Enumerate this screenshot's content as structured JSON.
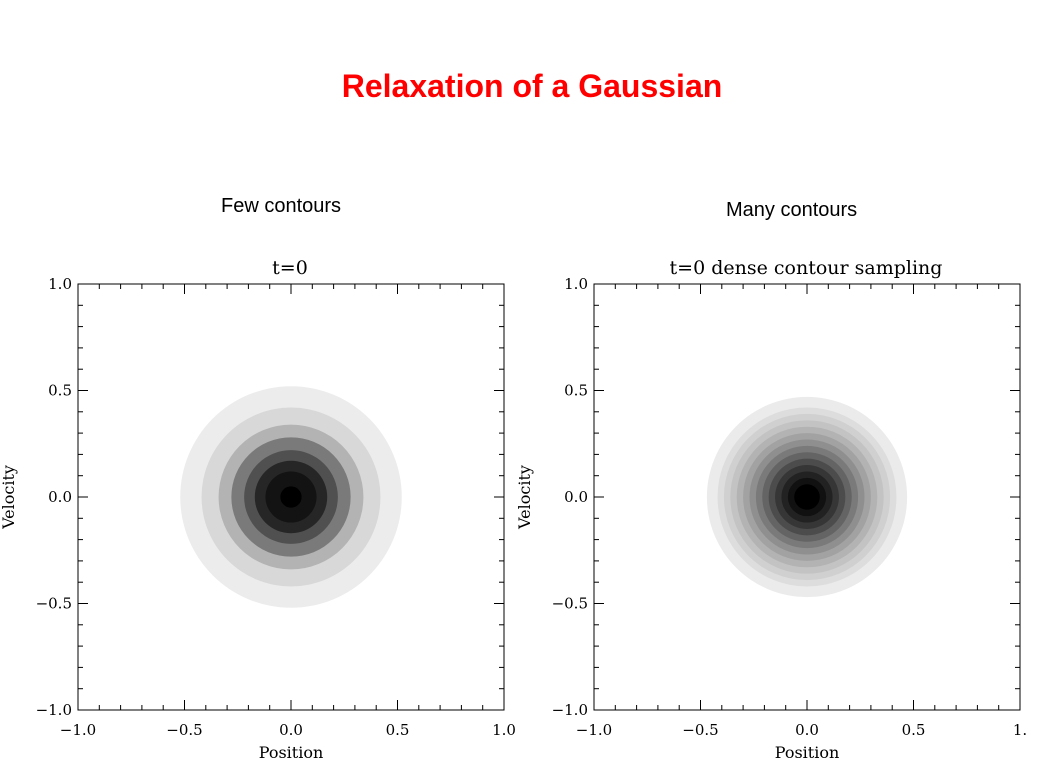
{
  "slide": {
    "title": "Relaxation of a Gaussian",
    "title_color": "#ff0000"
  },
  "captions": {
    "left": "Few contours",
    "right": "Many contours"
  },
  "chart_data": [
    {
      "type": "contour",
      "title": "t=0",
      "xlabel": "Position",
      "ylabel": "Velocity",
      "xlim": [
        -1.0,
        1.0
      ],
      "ylim": [
        -1.0,
        1.0
      ],
      "xticks": [
        "−1.0",
        "−0.5",
        "0.0",
        "0.5",
        "1.0"
      ],
      "yticks": [
        "−1.0",
        "−0.5",
        "0.0",
        "0.5",
        "1.0"
      ],
      "center": [
        0.0,
        0.0
      ],
      "grid": false,
      "fill": "grayscale filled contours",
      "levels": [
        {
          "radius": 0.52,
          "color": "#ececec"
        },
        {
          "radius": 0.42,
          "color": "#d8d8d8"
        },
        {
          "radius": 0.34,
          "color": "#b3b3b3"
        },
        {
          "radius": 0.28,
          "color": "#7a7a7a"
        },
        {
          "radius": 0.22,
          "color": "#505050"
        },
        {
          "radius": 0.17,
          "color": "#262626"
        },
        {
          "radius": 0.12,
          "color": "#131313"
        },
        {
          "radius": 0.05,
          "color": "#000000"
        }
      ]
    },
    {
      "type": "contour",
      "title": "t=0 dense contour sampling",
      "xlabel": "Position",
      "ylabel": "Velocity",
      "xlim": [
        -1.0,
        1.0
      ],
      "ylim": [
        -1.0,
        1.0
      ],
      "xticks": [
        "−1.0",
        "−0.5",
        "0.0",
        "0.5",
        "1."
      ],
      "yticks": [
        "−1.0",
        "−0.5",
        "0.0",
        "0.5",
        "1.0"
      ],
      "center": [
        0.0,
        0.0
      ],
      "grid": false,
      "fill": "grayscale filled contours",
      "levels": [
        {
          "radius": 0.47,
          "color": "#ebebeb"
        },
        {
          "radius": 0.42,
          "color": "#dddddd"
        },
        {
          "radius": 0.39,
          "color": "#d0d0d0"
        },
        {
          "radius": 0.36,
          "color": "#c3c3c3"
        },
        {
          "radius": 0.33,
          "color": "#b3b3b3"
        },
        {
          "radius": 0.3,
          "color": "#a2a2a2"
        },
        {
          "radius": 0.27,
          "color": "#8f8f8f"
        },
        {
          "radius": 0.24,
          "color": "#7a7a7a"
        },
        {
          "radius": 0.21,
          "color": "#646464"
        },
        {
          "radius": 0.18,
          "color": "#4c4c4c"
        },
        {
          "radius": 0.15,
          "color": "#363636"
        },
        {
          "radius": 0.12,
          "color": "#222222"
        },
        {
          "radius": 0.09,
          "color": "#111111"
        },
        {
          "radius": 0.06,
          "color": "#000000"
        }
      ]
    }
  ]
}
